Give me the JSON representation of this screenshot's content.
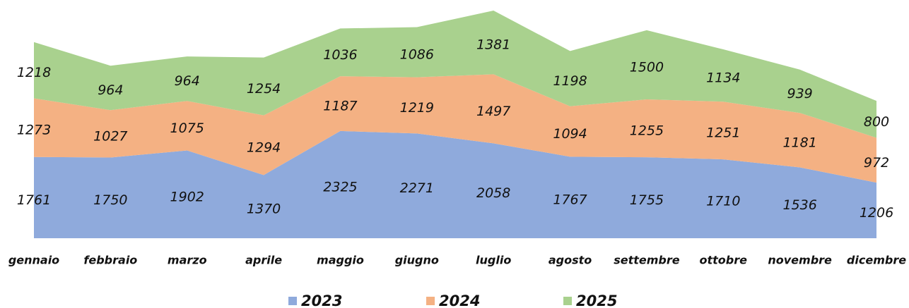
{
  "chart_data": {
    "type": "stacked_area",
    "categories": [
      "gennaio",
      "febbraio",
      "marzo",
      "aprile",
      "maggio",
      "giugno",
      "luglio",
      "agosto",
      "settembre",
      "ottobre",
      "novembre",
      "dicembre"
    ],
    "series": [
      {
        "name": "2023",
        "color": "#8faadc",
        "values": [
          1761,
          1750,
          1902,
          1370,
          2325,
          2271,
          2058,
          1767,
          1755,
          1710,
          1536,
          1206
        ]
      },
      {
        "name": "2024",
        "color": "#f4b183",
        "values": [
          1273,
          1027,
          1075,
          1294,
          1187,
          1219,
          1497,
          1094,
          1255,
          1251,
          1181,
          972
        ]
      },
      {
        "name": "2025",
        "color": "#a9d18e",
        "values": [
          1218,
          964,
          964,
          1254,
          1036,
          1086,
          1381,
          1198,
          1500,
          1134,
          939,
          800
        ]
      }
    ],
    "legend": "bottom"
  }
}
